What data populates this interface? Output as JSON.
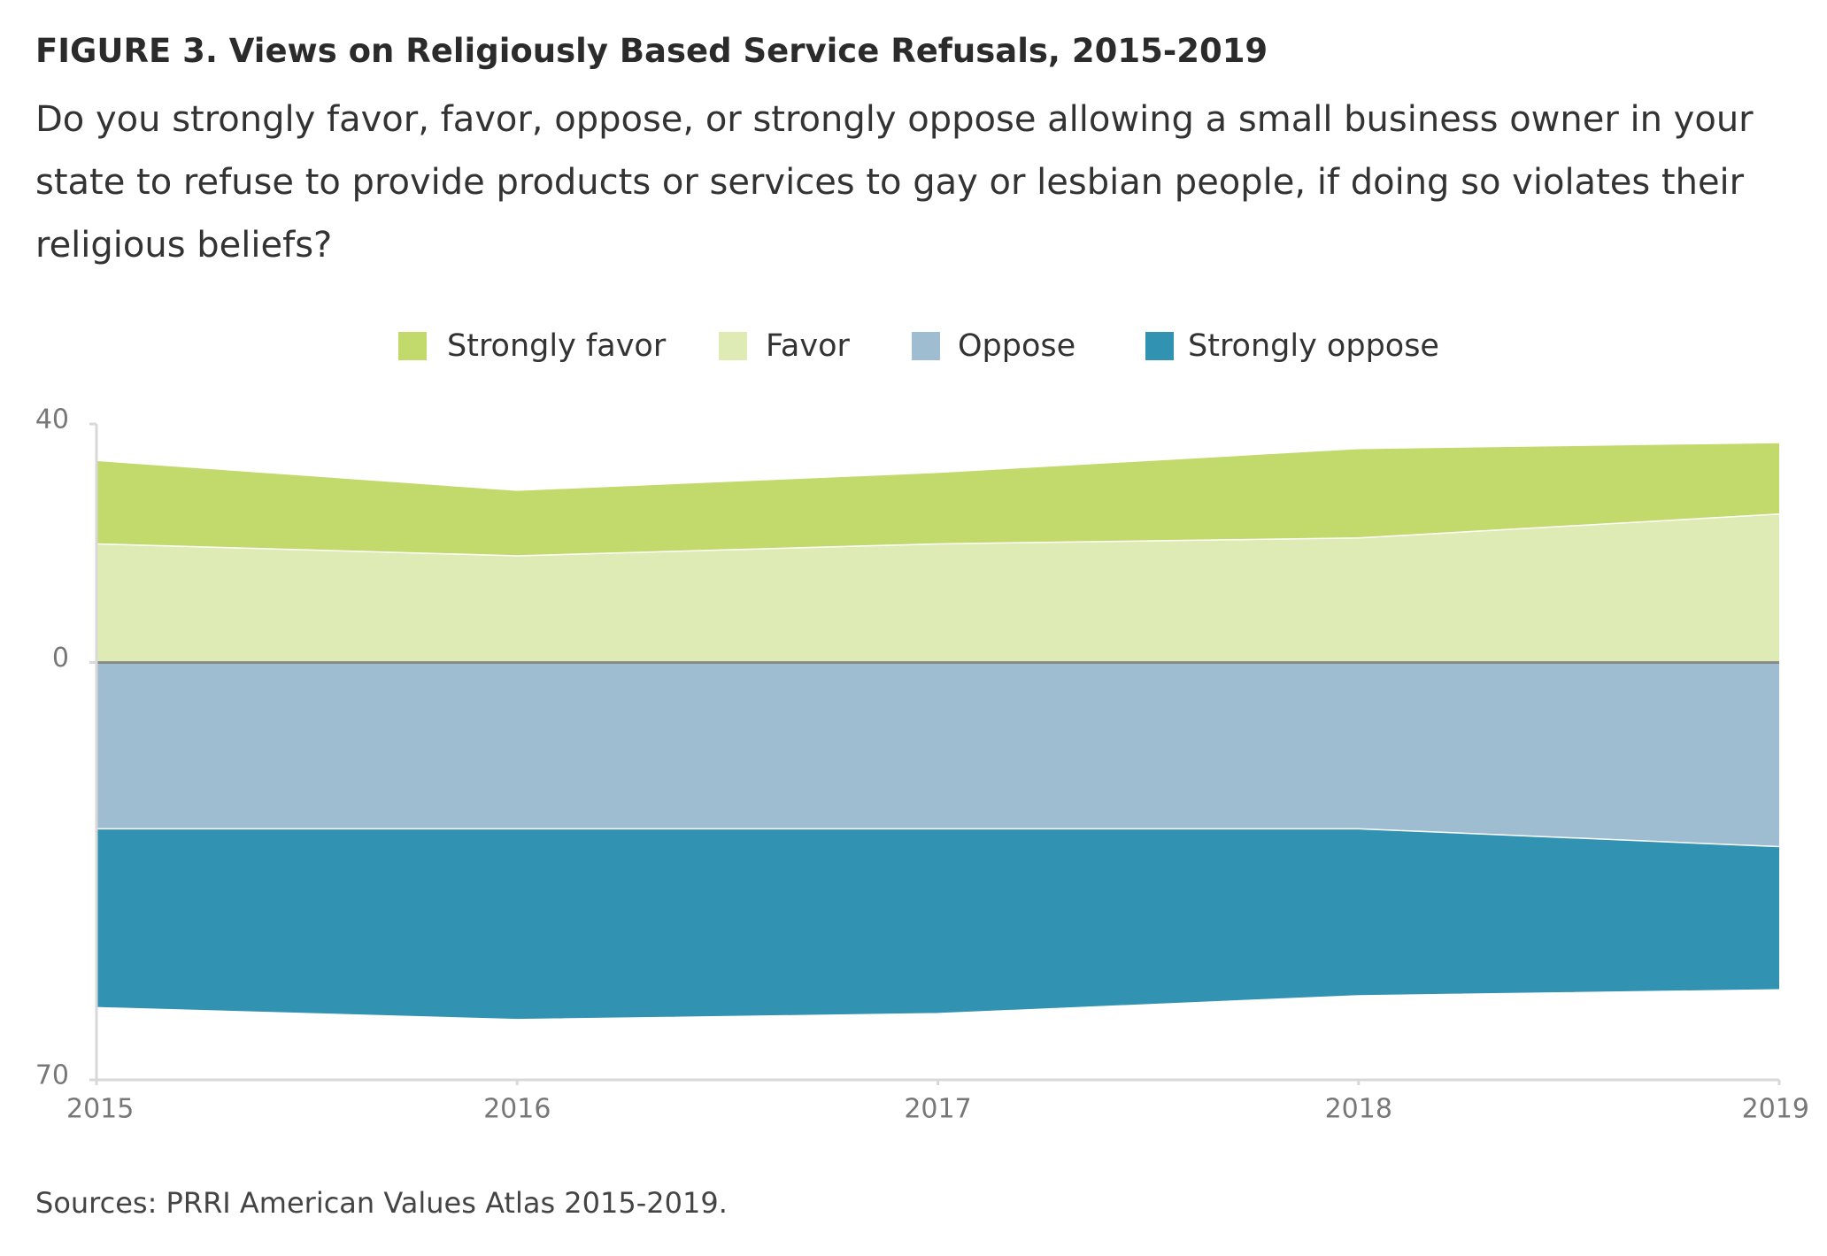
{
  "chart_data": {
    "type": "area",
    "title": "FIGURE 3. Views on Religiously Based Service Refusals, 2015-2019",
    "subtitle": "Do you strongly favor, favor, oppose, or strongly oppose allowing a small business owner in your state to refuse to provide products or services to gay or lesbian people, if doing so violates their religious beliefs?",
    "source": "Sources: PRRI American Values Atlas 2015-2019.",
    "x": [
      2015,
      2016,
      2017,
      2018,
      2019
    ],
    "xlim": [
      2015,
      2019
    ],
    "xticks": [
      2015,
      2016,
      2017,
      2018,
      2019
    ],
    "ylim": [
      -70,
      40
    ],
    "yticks": [
      40,
      0,
      {
        "value": -70,
        "label": "70"
      }
    ],
    "grid": false,
    "legend": "top",
    "series": [
      {
        "name": "Strongly favor",
        "color": "#c2d96b",
        "values": [
          14,
          11,
          12,
          15,
          12
        ]
      },
      {
        "name": "Favor",
        "color": "#deebb4",
        "values": [
          20,
          18,
          20,
          21,
          25
        ]
      },
      {
        "name": "Oppose",
        "color": "#9ebdd1",
        "values": [
          -28,
          -28,
          -28,
          -28,
          -31
        ]
      },
      {
        "name": "Strongly oppose",
        "color": "#3192b2",
        "values": [
          -30,
          -32,
          -31,
          -28,
          -24
        ]
      }
    ]
  }
}
